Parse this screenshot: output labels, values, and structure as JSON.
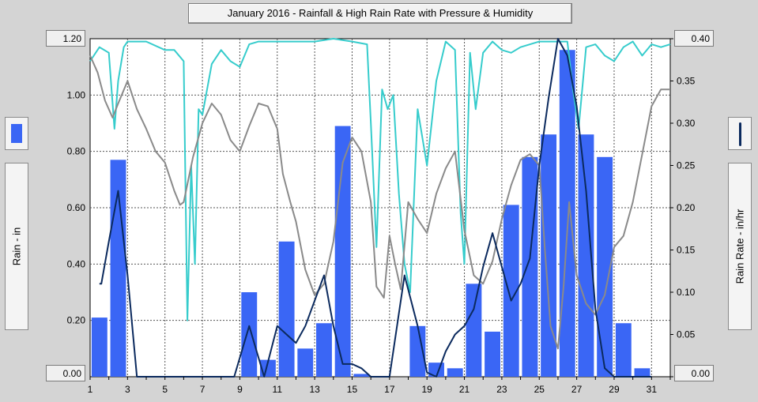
{
  "chart_data": {
    "type": "bar",
    "title": "January 2016 - Rainfall & High Rain Rate with Pressure & Humidity",
    "xlabel": "",
    "ylabel": "Rain - in",
    "y2label": "Rain Rate - in/hr",
    "xlim": [
      1,
      32
    ],
    "ylim": [
      0,
      1.2
    ],
    "y2lim": [
      0,
      0.4
    ],
    "x_ticks": [
      "1",
      "3",
      "5",
      "7",
      "9",
      "11",
      "13",
      "15",
      "17",
      "19",
      "21",
      "23",
      "25",
      "27",
      "29",
      "31"
    ],
    "y_ticks": [
      "0.00",
      "0.20",
      "0.40",
      "0.60",
      "0.80",
      "1.00",
      "1.20"
    ],
    "y2_ticks": [
      "0.00",
      "0.05",
      "0.10",
      "0.15",
      "0.20",
      "0.25",
      "0.30",
      "0.35",
      "0.40"
    ],
    "y_readout_top": "1.20",
    "y_readout_bottom": "0.00",
    "y2_readout_top": "0.40",
    "y2_readout_bottom": "0.00",
    "grid": true,
    "series": [
      {
        "type": "bar",
        "color": "#3a66f5",
        "categories": [
          1,
          2,
          3,
          4,
          5,
          6,
          7,
          8,
          9,
          10,
          11,
          12,
          13,
          14,
          15,
          16,
          17,
          18,
          19,
          20,
          21,
          22,
          23,
          24,
          25,
          26,
          27,
          28,
          29,
          30,
          31
        ],
        "values": [
          0.21,
          0.77,
          0,
          0,
          0,
          0,
          0,
          0,
          0.3,
          0.06,
          0.48,
          0.1,
          0.19,
          0.89,
          0.01,
          0,
          0,
          0.18,
          0.05,
          0.03,
          0.33,
          0.16,
          0.61,
          0.78,
          0.86,
          1.16,
          0.86,
          0.78,
          0.19,
          0.03,
          0
        ]
      },
      {
        "type": "line",
        "axis": "y2",
        "color": "#0b2a5e",
        "x": [
          1.5,
          1.6,
          2,
          2.5,
          3,
          3.5,
          4,
          5,
          6,
          7,
          8,
          8.7,
          9.5,
          10.3,
          11,
          11.5,
          12,
          12.5,
          13,
          13.5,
          14,
          14.5,
          15,
          15.5,
          16,
          16.5,
          17,
          17.8,
          18.5,
          19,
          19.5,
          20,
          20.5,
          21,
          21.5,
          22,
          22.5,
          23,
          23.5,
          24,
          24.5,
          25,
          25.5,
          26,
          26.5,
          27,
          27.5,
          28,
          28.5,
          29,
          29.5,
          30,
          30.5,
          31
        ],
        "values": [
          0.11,
          0.11,
          0.16,
          0.22,
          0.12,
          0,
          0,
          0,
          0,
          0,
          0,
          0,
          0.06,
          0,
          0.06,
          0.05,
          0.04,
          0.06,
          0.09,
          0.12,
          0.06,
          0.015,
          0.015,
          0.01,
          0,
          0,
          0,
          0.12,
          0.06,
          0.005,
          0,
          0.03,
          0.05,
          0.06,
          0.08,
          0.13,
          0.17,
          0.13,
          0.09,
          0.11,
          0.14,
          0.25,
          0.33,
          0.4,
          0.38,
          0.32,
          0.22,
          0.08,
          0.01,
          0,
          0,
          0,
          0,
          0
        ]
      },
      {
        "type": "line",
        "color": "#8a8a8a",
        "x": [
          1,
          1.4,
          1.8,
          2.2,
          2.5,
          3,
          3.5,
          4,
          4.5,
          5,
          5.5,
          5.8,
          6,
          6.5,
          7,
          7.5,
          8,
          8.5,
          9,
          9.5,
          10,
          10.5,
          11,
          11.3,
          11.7,
          12,
          12.5,
          13,
          13.5,
          14,
          14.5,
          15,
          15.5,
          16,
          16.3,
          16.7,
          17,
          17.3,
          17.6,
          18,
          18.5,
          19,
          19.5,
          20,
          20.5,
          21,
          21.5,
          22,
          22.5,
          23,
          23.5,
          24,
          24.5,
          25,
          25.3,
          25.6,
          26,
          26.3,
          26.6,
          27,
          27.5,
          28,
          28.5,
          29,
          29.5,
          30,
          30.5,
          31,
          31.5,
          32
        ],
        "values": [
          1.14,
          1.08,
          0.98,
          0.92,
          0.97,
          1.05,
          0.95,
          0.88,
          0.8,
          0.76,
          0.66,
          0.61,
          0.62,
          0.78,
          0.9,
          0.97,
          0.93,
          0.84,
          0.8,
          0.89,
          0.97,
          0.96,
          0.88,
          0.72,
          0.62,
          0.55,
          0.38,
          0.29,
          0.33,
          0.48,
          0.76,
          0.85,
          0.8,
          0.62,
          0.32,
          0.28,
          0.5,
          0.4,
          0.31,
          0.62,
          0.56,
          0.51,
          0.65,
          0.74,
          0.8,
          0.52,
          0.36,
          0.33,
          0.41,
          0.56,
          0.68,
          0.77,
          0.79,
          0.75,
          0.45,
          0.18,
          0.1,
          0.32,
          0.62,
          0.36,
          0.26,
          0.22,
          0.29,
          0.46,
          0.5,
          0.62,
          0.79,
          0.96,
          1.02,
          1.02
        ]
      },
      {
        "type": "line",
        "color": "#36cccc",
        "x": [
          1,
          1.5,
          2,
          2.3,
          2.5,
          2.8,
          3,
          4,
          5,
          5.5,
          6,
          6.2,
          6.4,
          6.6,
          6.8,
          7,
          7.5,
          8,
          8.5,
          9,
          9.5,
          10,
          11,
          12,
          13,
          14,
          15,
          15.8,
          16,
          16.3,
          16.6,
          16.9,
          17.2,
          17.5,
          17.8,
          18.1,
          18.5,
          19,
          19.5,
          20,
          20.5,
          20.8,
          21,
          21.3,
          21.6,
          22,
          22.5,
          23,
          23.5,
          24,
          25,
          26,
          26.5,
          26.8,
          27.1,
          27.5,
          28,
          28.5,
          29,
          29.5,
          30,
          30.5,
          31,
          31.5,
          32
        ],
        "values": [
          1.12,
          1.17,
          1.15,
          0.88,
          1.05,
          1.17,
          1.19,
          1.19,
          1.16,
          1.16,
          1.12,
          0.2,
          0.75,
          0.4,
          0.95,
          0.93,
          1.11,
          1.16,
          1.12,
          1.1,
          1.18,
          1.19,
          1.19,
          1.19,
          1.19,
          1.2,
          1.19,
          1.18,
          0.9,
          0.46,
          1.02,
          0.95,
          1.0,
          0.65,
          0.4,
          0.3,
          0.95,
          0.75,
          1.05,
          1.19,
          1.16,
          0.58,
          0.4,
          1.15,
          0.95,
          1.15,
          1.19,
          1.16,
          1.15,
          1.17,
          1.19,
          1.19,
          1.19,
          1.02,
          0.88,
          1.17,
          1.18,
          1.14,
          1.12,
          1.17,
          1.19,
          1.14,
          1.18,
          1.17,
          1.18
        ]
      }
    ]
  }
}
